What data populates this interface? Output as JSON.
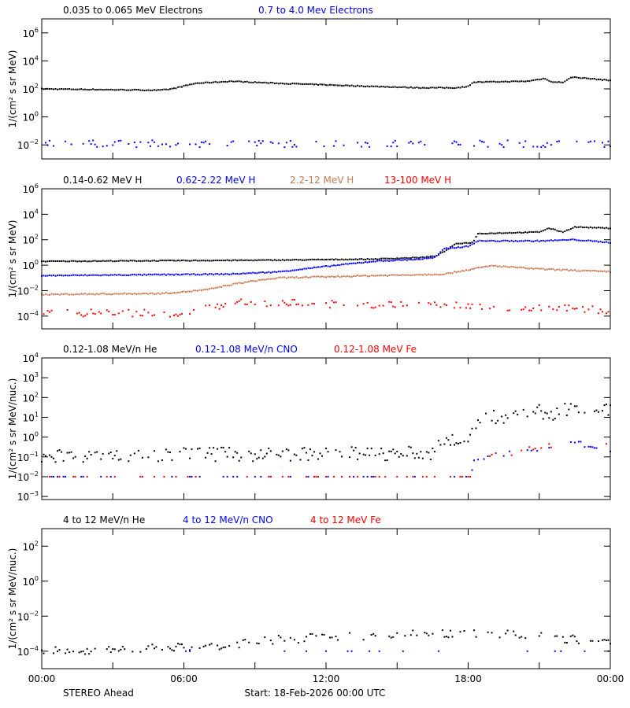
{
  "footer": {
    "spacecraft": "STEREO Ahead",
    "start": "Start: 18-Feb-2026 00:00 UTC"
  },
  "x_axis": {
    "range_hours": [
      0,
      24
    ],
    "tick_labels": [
      "00:00",
      "06:00",
      "12:00",
      "18:00",
      "00:00"
    ],
    "major_every_hours": 6,
    "minor_every_hours": 3
  },
  "chart_data": [
    {
      "type": "scatter",
      "ylabel": "1/(cm² s sr MeV)",
      "yscale": "log",
      "ylim": [
        0.001,
        10000000
      ],
      "ytick_exponents": [
        -2,
        0,
        2,
        4,
        6
      ],
      "series": [
        {
          "name": "0.035 to 0.065 MeV Electrons",
          "color": "#000000",
          "points": [
            [
              0,
              100
            ],
            [
              5,
              80
            ],
            [
              5.5,
              100
            ],
            [
              6.5,
              250
            ],
            [
              8,
              350
            ],
            [
              10,
              250
            ],
            [
              14,
              150
            ],
            [
              16,
              120
            ],
            [
              17.5,
              120
            ],
            [
              18,
              150
            ],
            [
              18.2,
              300
            ],
            [
              20.5,
              350
            ],
            [
              21.2,
              550
            ],
            [
              21.6,
              300
            ],
            [
              22,
              300
            ],
            [
              22.4,
              700
            ],
            [
              24,
              400
            ]
          ]
        },
        {
          "name": "0.7 to 4.0 Mev Electrons",
          "color": "#0000ff",
          "points": [
            [
              0,
              0.012
            ],
            [
              24,
              0.012
            ]
          ]
        }
      ]
    },
    {
      "type": "scatter",
      "ylabel": "1/(cm² s sr MeV)",
      "yscale": "log",
      "ylim": [
        1e-05,
        1000000
      ],
      "ytick_exponents": [
        -4,
        -2,
        0,
        2,
        4,
        6
      ],
      "series": [
        {
          "name": "0.14-0.62 MeV H",
          "color": "#000000",
          "points": [
            [
              0,
              2
            ],
            [
              10,
              2.5
            ],
            [
              14,
              3
            ],
            [
              16,
              4
            ],
            [
              16.6,
              5
            ],
            [
              17,
              12
            ],
            [
              17.5,
              50
            ],
            [
              18.2,
              60
            ],
            [
              18.4,
              300
            ],
            [
              21,
              400
            ],
            [
              21.4,
              800
            ],
            [
              22,
              400
            ],
            [
              22.5,
              1000
            ],
            [
              24,
              800
            ]
          ]
        },
        {
          "name": "0.62-2.22 MeV H",
          "color": "#0000ff",
          "points": [
            [
              0,
              0.15
            ],
            [
              8,
              0.2
            ],
            [
              10,
              0.3
            ],
            [
              12,
              0.8
            ],
            [
              14,
              2
            ],
            [
              16,
              3
            ],
            [
              16.6,
              4
            ],
            [
              17,
              20
            ],
            [
              18,
              30
            ],
            [
              18.4,
              80
            ],
            [
              21,
              80
            ],
            [
              22.5,
              100
            ],
            [
              24,
              60
            ]
          ]
        },
        {
          "name": "2.2-12 MeV H",
          "color": "#c87850",
          "points": [
            [
              0,
              0.005
            ],
            [
              5,
              0.006
            ],
            [
              6,
              0.008
            ],
            [
              7,
              0.012
            ],
            [
              8,
              0.03
            ],
            [
              9,
              0.06
            ],
            [
              10,
              0.1
            ],
            [
              14,
              0.15
            ],
            [
              17,
              0.2
            ],
            [
              17.5,
              0.3
            ],
            [
              19,
              0.9
            ],
            [
              21,
              0.5
            ],
            [
              24,
              0.3
            ]
          ]
        },
        {
          "name": "13-100 MeV H",
          "color": "#ff0000",
          "points": [
            [
              0,
              0.0002
            ],
            [
              6,
              0.00015
            ],
            [
              7,
              0.0005
            ],
            [
              8,
              0.001
            ],
            [
              9,
              0.0012
            ],
            [
              12,
              0.0009
            ],
            [
              18,
              0.0006
            ],
            [
              21,
              0.0005
            ],
            [
              24,
              0.0003
            ]
          ]
        }
      ]
    },
    {
      "type": "scatter",
      "ylabel": "1/(cm² s sr MeV/nuc.)",
      "yscale": "log",
      "ylim": [
        0.0007,
        10000
      ],
      "ytick_exponents": [
        -3,
        -2,
        -1,
        0,
        1,
        2,
        3,
        4
      ],
      "series": [
        {
          "name": "0.12-1.08 MeV/n He",
          "color": "#000000",
          "points": [
            [
              0,
              0.12
            ],
            [
              16.5,
              0.15
            ],
            [
              17,
              0.6
            ],
            [
              17.8,
              0.8
            ],
            [
              18.1,
              1
            ],
            [
              18.3,
              4
            ],
            [
              18.5,
              10
            ],
            [
              20,
              10
            ],
            [
              21,
              20
            ],
            [
              21.6,
              12
            ],
            [
              22.4,
              35
            ],
            [
              24,
              20
            ]
          ]
        },
        {
          "name": "0.12-1.08 MeV/n CNO",
          "color": "#0000ff",
          "points": [
            [
              0,
              0.01
            ],
            [
              18.1,
              0.01
            ],
            [
              18.3,
              0.1
            ],
            [
              20,
              0.15
            ],
            [
              21,
              0.25
            ],
            [
              22.5,
              0.5
            ],
            [
              24,
              0.25
            ]
          ]
        },
        {
          "name": "0.12-1.08 MeV Fe",
          "color": "#ff0000",
          "points": [
            [
              0,
              0.01
            ],
            [
              18.1,
              0.01
            ],
            [
              18.3,
              0.1
            ],
            [
              20,
              0.15
            ],
            [
              21,
              0.3
            ],
            [
              22.5,
              0.6
            ],
            [
              24,
              0.3
            ]
          ]
        }
      ]
    },
    {
      "type": "scatter",
      "ylabel": "1/(cm² s sr MeV/nuc.)",
      "yscale": "log",
      "ylim": [
        1e-05,
        1000
      ],
      "ytick_exponents": [
        -4,
        -2,
        0,
        2
      ],
      "series": [
        {
          "name": "4 to 12 MeV/n He",
          "color": "#000000",
          "points": [
            [
              0,
              0.0001
            ],
            [
              8,
              0.0002
            ],
            [
              10,
              0.0005
            ],
            [
              14,
              0.0007
            ],
            [
              18,
              0.0012
            ],
            [
              21,
              0.0007
            ],
            [
              24,
              0.0003
            ]
          ]
        },
        {
          "name": "4 to 12 MeV/n CNO",
          "color": "#0000ff",
          "points": [
            [
              0,
              0.0001
            ],
            [
              24,
              0.0001
            ]
          ]
        },
        {
          "name": "4 to 12 MeV Fe",
          "color": "#ff0000",
          "points": []
        }
      ]
    }
  ]
}
